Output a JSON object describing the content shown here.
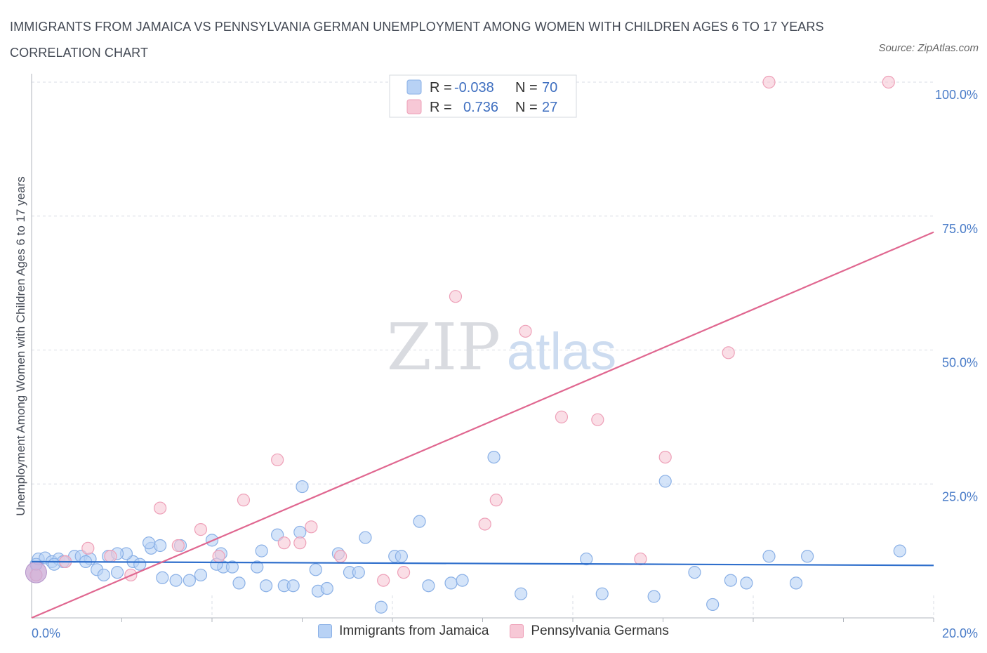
{
  "title": "IMMIGRANTS FROM JAMAICA VS PENNSYLVANIA GERMAN UNEMPLOYMENT AMONG WOMEN WITH CHILDREN AGES 6 TO 17 YEARS CORRELATION CHART",
  "source": "Source: ZipAtlas.com",
  "colors": {
    "blue_fill": "#b8d2f5",
    "blue_stroke": "#8ab0e6",
    "blue_line": "#2f6fcc",
    "pink_fill": "#f7c8d6",
    "pink_stroke": "#eea0b8",
    "pink_line": "#e06790",
    "grid": "#d8dce4",
    "tick_label": "#4a7cc8"
  },
  "legend": {
    "r_label": "R =",
    "n_label": "N =",
    "series1": {
      "r": "-0.038",
      "n": "70"
    },
    "series2": {
      "r": "0.736",
      "n": "27"
    }
  },
  "watermark": {
    "zip": "ZIP",
    "atlas": "atlas"
  },
  "chart_data": {
    "type": "scatter",
    "xlabel": "",
    "ylabel": "Unemployment Among Women with Children Ages 6 to 17 years",
    "xlim": [
      0,
      20
    ],
    "ylim": [
      0,
      100
    ],
    "x_tick_labels": [
      "0.0%",
      "20.0%"
    ],
    "y_tick_labels": [
      "25.0%",
      "50.0%",
      "75.0%",
      "100.0%"
    ],
    "y_ticks": [
      25,
      50,
      75,
      100
    ],
    "grid": true,
    "legend_position": "top-center",
    "series": [
      {
        "name": "Immigrants from Jamaica",
        "color": "#b8d2f5",
        "trend": {
          "x": [
            0,
            20
          ],
          "y": [
            10.5,
            9.8
          ]
        },
        "points": [
          [
            0.15,
            11.0
          ],
          [
            0.3,
            11.2
          ],
          [
            0.45,
            10.5
          ],
          [
            0.6,
            11.0
          ],
          [
            0.75,
            10.5
          ],
          [
            0.95,
            11.5
          ],
          [
            1.1,
            11.5
          ],
          [
            1.3,
            11.0
          ],
          [
            1.45,
            9.0
          ],
          [
            1.6,
            8.0
          ],
          [
            1.9,
            8.5
          ],
          [
            1.7,
            11.5
          ],
          [
            2.25,
            10.5
          ],
          [
            2.1,
            12.0
          ],
          [
            2.65,
            13.0
          ],
          [
            2.85,
            13.5
          ],
          [
            2.6,
            14.0
          ],
          [
            2.9,
            7.5
          ],
          [
            3.2,
            7.0
          ],
          [
            3.5,
            7.0
          ],
          [
            3.75,
            8.0
          ],
          [
            4.0,
            14.5
          ],
          [
            4.2,
            12.0
          ],
          [
            4.25,
            9.5
          ],
          [
            4.45,
            9.5
          ],
          [
            4.6,
            6.5
          ],
          [
            5.1,
            12.5
          ],
          [
            5.2,
            6.0
          ],
          [
            5.45,
            15.5
          ],
          [
            5.6,
            6.0
          ],
          [
            5.8,
            6.0
          ],
          [
            5.95,
            16.0
          ],
          [
            6.0,
            24.5
          ],
          [
            6.35,
            5.0
          ],
          [
            6.55,
            5.5
          ],
          [
            6.8,
            12.0
          ],
          [
            7.05,
            8.5
          ],
          [
            7.25,
            8.5
          ],
          [
            7.4,
            15.0
          ],
          [
            7.75,
            2.0
          ],
          [
            8.05,
            11.5
          ],
          [
            8.2,
            11.5
          ],
          [
            8.6,
            18.0
          ],
          [
            8.8,
            6.0
          ],
          [
            9.3,
            6.5
          ],
          [
            9.55,
            7.0
          ],
          [
            10.25,
            30.0
          ],
          [
            10.85,
            4.5
          ],
          [
            12.3,
            11.0
          ],
          [
            12.65,
            4.5
          ],
          [
            13.8,
            4.0
          ],
          [
            14.05,
            25.5
          ],
          [
            14.7,
            8.5
          ],
          [
            15.1,
            2.5
          ],
          [
            15.5,
            7.0
          ],
          [
            15.85,
            6.5
          ],
          [
            16.35,
            11.5
          ],
          [
            16.95,
            6.5
          ],
          [
            17.2,
            11.5
          ],
          [
            19.25,
            12.5
          ],
          [
            0.7,
            10.5
          ],
          [
            1.2,
            10.5
          ],
          [
            2.4,
            10.0
          ],
          [
            4.1,
            10.0
          ],
          [
            0.1,
            10.0
          ],
          [
            0.5,
            10.0
          ],
          [
            1.9,
            12.0
          ],
          [
            3.3,
            13.5
          ],
          [
            5.0,
            9.5
          ],
          [
            6.3,
            9.0
          ]
        ]
      },
      {
        "name": "Pennsylvania Germans",
        "color": "#f7c8d6",
        "trend": {
          "x": [
            0,
            20
          ],
          "y": [
            0,
            72
          ]
        },
        "points": [
          [
            0.1,
            8.0
          ],
          [
            0.75,
            10.5
          ],
          [
            1.25,
            13.0
          ],
          [
            1.75,
            11.5
          ],
          [
            2.2,
            8.0
          ],
          [
            2.85,
            20.5
          ],
          [
            3.25,
            13.5
          ],
          [
            3.75,
            16.5
          ],
          [
            4.15,
            11.5
          ],
          [
            4.7,
            22.0
          ],
          [
            5.45,
            29.5
          ],
          [
            5.6,
            14.0
          ],
          [
            5.95,
            14.0
          ],
          [
            6.2,
            17.0
          ],
          [
            6.85,
            11.5
          ],
          [
            7.8,
            7.0
          ],
          [
            8.25,
            8.5
          ],
          [
            9.4,
            60.0
          ],
          [
            10.05,
            17.5
          ],
          [
            10.3,
            22.0
          ],
          [
            10.95,
            53.5
          ],
          [
            11.75,
            37.5
          ],
          [
            12.55,
            37.0
          ],
          [
            13.5,
            11.0
          ],
          [
            14.05,
            30.0
          ],
          [
            15.45,
            49.5
          ],
          [
            16.35,
            100.0
          ]
        ]
      }
    ]
  },
  "bottom_legend": {
    "series1": "Immigrants from Jamaica",
    "series2": "Pennsylvania Germans"
  }
}
